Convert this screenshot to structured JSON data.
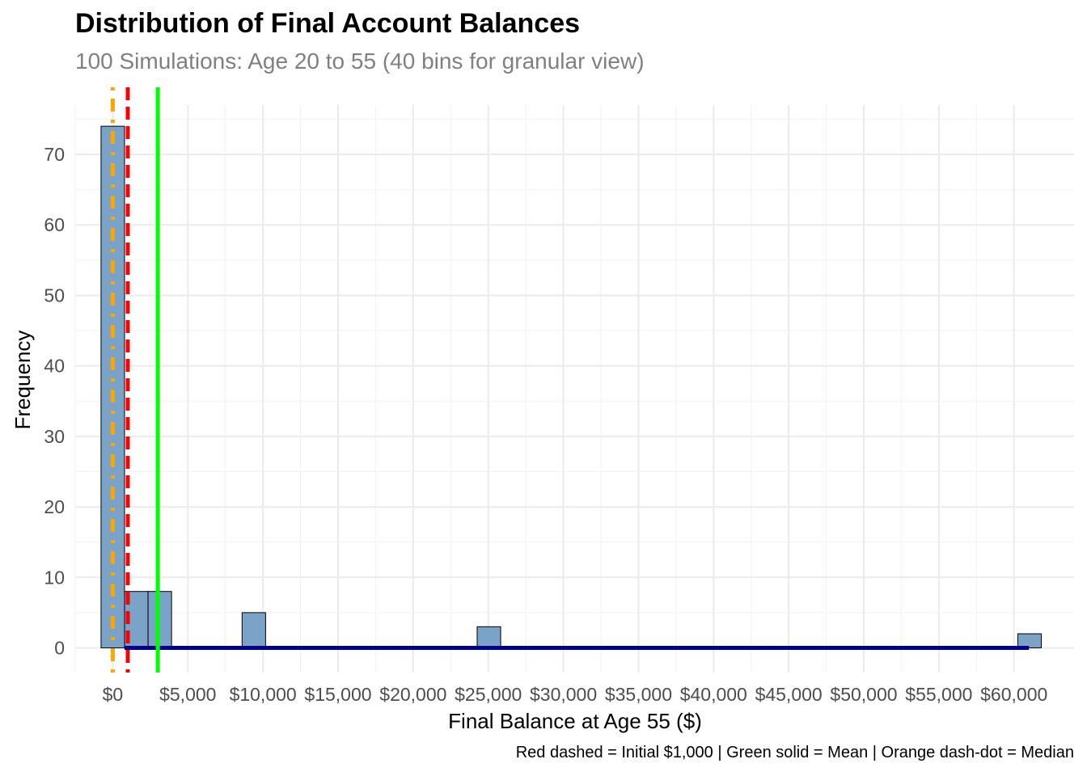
{
  "chart_data": {
    "type": "bar",
    "title": "Distribution of Final Account Balances",
    "subtitle": "100 Simulations: Age 20 to 55 (40 bins for granular view)",
    "xlabel": "Final Balance at Age 55 ($)",
    "ylabel": "Frequency",
    "caption": "Red dashed = Initial $1,000 | Green solid = Mean | Orange dash-dot = Median",
    "bin_width": 1565,
    "bins": [
      {
        "x_start": -780,
        "x_end": 785,
        "count": 74
      },
      {
        "x_start": 785,
        "x_end": 2350,
        "count": 8
      },
      {
        "x_start": 2350,
        "x_end": 3915,
        "count": 8
      },
      {
        "x_start": 8610,
        "x_end": 10175,
        "count": 5
      },
      {
        "x_start": 24260,
        "x_end": 25825,
        "count": 3
      },
      {
        "x_start": 60255,
        "x_end": 61820,
        "count": 2
      }
    ],
    "baseline_segment": {
      "x_start": 785,
      "x_end": 61000,
      "y": 0,
      "color": "#00008B"
    },
    "reference_lines": [
      {
        "name": "Initial $1,000",
        "x": 1000,
        "color": "#FF0000",
        "style": "dashed"
      },
      {
        "name": "Mean",
        "x": 3000,
        "color": "#00FF00",
        "style": "solid"
      },
      {
        "name": "Median",
        "x": 0,
        "color": "#FFA500",
        "style": "dash-dot"
      }
    ],
    "x_ticks": [
      0,
      5000,
      10000,
      15000,
      20000,
      25000,
      30000,
      35000,
      40000,
      45000,
      50000,
      55000,
      60000
    ],
    "x_tick_labels": [
      "$0",
      "$5,000",
      "$10,000",
      "$15,000",
      "$20,000",
      "$25,000",
      "$30,000",
      "$35,000",
      "$40,000",
      "$45,000",
      "$50,000",
      "$55,000",
      "$60,000"
    ],
    "y_ticks": [
      0,
      10,
      20,
      30,
      40,
      50,
      60,
      70
    ],
    "y_tick_labels": [
      "0",
      "10",
      "20",
      "30",
      "40",
      "50",
      "60",
      "70"
    ],
    "xlim": [
      -2500,
      64000
    ],
    "ylim": [
      -3.5,
      77
    ],
    "grid": true,
    "bar_fill": "#7BA3C8",
    "bar_stroke": "#000000"
  }
}
